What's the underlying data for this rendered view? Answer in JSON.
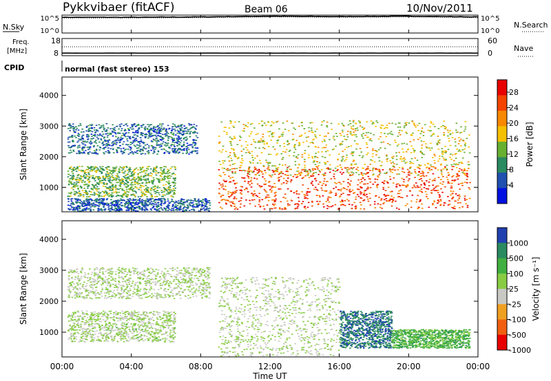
{
  "header": {
    "station": "Pykkvibaer (fitACF)",
    "beam": "Beam 06",
    "date": "10/Nov/2011"
  },
  "noise_panel": {
    "left_label": "N.Sky",
    "left_ticks": [
      "10^5",
      "10^0"
    ],
    "right_label": "N.Search",
    "right_ticks": [
      "10^5",
      "10^0"
    ]
  },
  "freq_panel": {
    "left_label_1": "Freq.",
    "left_label_2": "[MHz]",
    "left_ticks": [
      "18",
      "8"
    ],
    "right_label": "Nave",
    "right_ticks": [
      "60",
      "0"
    ]
  },
  "cpid": {
    "label": "CPID",
    "value": "normal (fast stereo) 153"
  },
  "x_axis": {
    "ticks": [
      "00:00",
      "04:00",
      "08:00",
      "12:00",
      "16:00",
      "20:00",
      "00:00"
    ],
    "label": "Time UT"
  },
  "power_panel": {
    "ylabel": "Slant Range [km]",
    "yticks": [
      "4000",
      "3000",
      "2000",
      "1000"
    ],
    "colorbar_label": "Power [dB]",
    "colorbar_ticks": [
      "28",
      "24",
      "20",
      "16",
      "12",
      "8",
      "4"
    ],
    "colors": [
      "#e80000",
      "#f44400",
      "#f88800",
      "#f5c000",
      "#68b030",
      "#2a8a60",
      "#2050b0",
      "#0010e0"
    ]
  },
  "velocity_panel": {
    "ylabel": "Slant Range [km]",
    "yticks": [
      "4000",
      "3000",
      "2000",
      "1000"
    ],
    "colorbar_label": "Velocity [m s⁻¹]",
    "colorbar_ticks": [
      "1000",
      "500",
      "100",
      "25",
      "-25",
      "-100",
      "-500",
      "-1000"
    ],
    "colors": [
      "#2040b0",
      "#2a8a60",
      "#40b040",
      "#88cc44",
      "#c8c8c4",
      "#f0a020",
      "#f06010",
      "#e80000"
    ]
  },
  "chart_data": [
    {
      "type": "line",
      "title": "N.Sky / N.Search",
      "x": [
        "00:00",
        "04:00",
        "08:00",
        "12:00",
        "16:00",
        "20:00",
        "24:00"
      ],
      "series": [
        {
          "name": "N.Sky",
          "values": [
            4.4,
            4.4,
            4.5,
            4.7,
            4.6,
            4.7,
            4.5
          ]
        },
        {
          "name": "N.Search",
          "values": [
            4.2,
            4.2,
            4.3,
            4.5,
            4.4,
            4.5,
            4.3
          ]
        }
      ],
      "ylim": [
        0,
        5
      ],
      "y_scale": "log10"
    },
    {
      "type": "line",
      "title": "Freq. / Nave",
      "x": [
        "00:00",
        "04:00",
        "08:00",
        "12:00",
        "16:00",
        "20:00",
        "24:00"
      ],
      "series": [
        {
          "name": "Freq.",
          "values": [
            9.5,
            9.5,
            9.5,
            9.5,
            9.5,
            9.5,
            9.5
          ]
        },
        {
          "name": "Nave",
          "values": [
            31,
            31,
            31,
            31,
            31,
            31,
            31
          ]
        }
      ],
      "ylim": [
        8,
        18
      ]
    },
    {
      "type": "heatmap",
      "title": "Power [dB]",
      "xlabel": "Time UT",
      "ylabel": "Slant Range [km]",
      "xlim": [
        0,
        24
      ],
      "ylim": [
        200,
        4600
      ],
      "zlim": [
        0,
        30
      ],
      "regions": [
        {
          "t0": 0.3,
          "t1": 7.8,
          "r_centre": 2600,
          "r_width": 500,
          "power": 6
        },
        {
          "t0": 0.3,
          "t1": 6.5,
          "r_centre": 1200,
          "r_width": 500,
          "power": 12
        },
        {
          "t0": 0.3,
          "t1": 8.5,
          "r_centre": 400,
          "r_width": 250,
          "power": 5
        },
        {
          "t0": 9.0,
          "t1": 23.5,
          "r_centre": 1000,
          "r_width": 700,
          "power": 26
        },
        {
          "t0": 9.0,
          "t1": 23.5,
          "r_centre": 2300,
          "r_width": 900,
          "power": 16
        }
      ]
    },
    {
      "type": "heatmap",
      "title": "Velocity [m s⁻¹]",
      "xlabel": "Time UT",
      "ylabel": "Slant Range [km]",
      "xlim": [
        0,
        24
      ],
      "ylim": [
        200,
        4600
      ],
      "zlim": [
        -1000,
        1000
      ],
      "regions": [
        {
          "t0": 0.3,
          "t1": 8.5,
          "r_centre": 2600,
          "r_width": 500,
          "velocity": 0
        },
        {
          "t0": 0.3,
          "t1": 6.5,
          "r_centre": 1200,
          "r_width": 500,
          "velocity": 50
        },
        {
          "t0": 9.0,
          "t1": 16.0,
          "r_centre": 1500,
          "r_width": 1300,
          "velocity": 0
        },
        {
          "t0": 16.0,
          "t1": 19.0,
          "r_centre": 1100,
          "r_width": 600,
          "velocity": 800
        },
        {
          "t0": 19.0,
          "t1": 23.5,
          "r_centre": 800,
          "r_width": 300,
          "velocity": 400
        }
      ]
    }
  ]
}
